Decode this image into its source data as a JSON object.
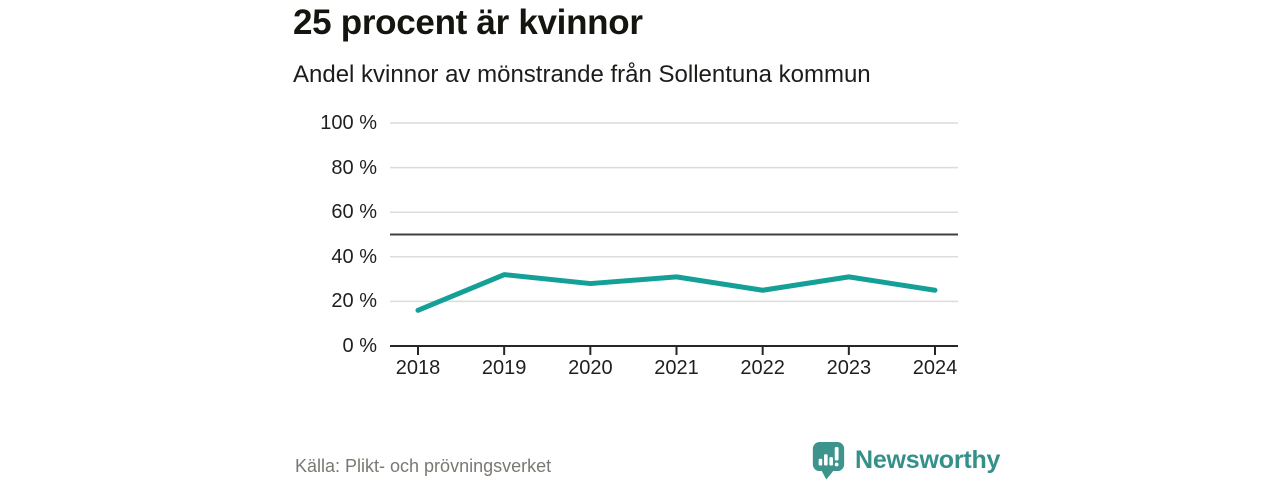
{
  "header": {
    "title": "25 procent är kvinnor",
    "subtitle": "Andel kvinnor av mönstrande från Sollentuna kommun"
  },
  "footer": {
    "source": "Källa: Plikt- och prövningsverket",
    "brand": "Newsworthy"
  },
  "colors": {
    "line": "#14a096",
    "grid": "#dcdcdc",
    "reference_line": "#404040",
    "axis": "#262626",
    "tick": "#262626",
    "label": "#1f1f1f",
    "brand_teal": "#35908a"
  },
  "chart_data": {
    "type": "line",
    "title": "25 procent är kvinnor",
    "subtitle": "Andel kvinnor av mönstrande från Sollentuna kommun",
    "x": [
      2018,
      2019,
      2020,
      2021,
      2022,
      2023,
      2024
    ],
    "x_labels": [
      "2018",
      "2019",
      "2020",
      "2021",
      "2022",
      "2023",
      "2024"
    ],
    "series": [
      {
        "name": "Andel kvinnor av mönstrande",
        "values": [
          16,
          32,
          28,
          31,
          25,
          31,
          25
        ]
      }
    ],
    "unit": "%",
    "ylim": [
      0,
      100
    ],
    "yticks": [
      0,
      20,
      40,
      60,
      80,
      100
    ],
    "ytick_labels": [
      "0 %",
      "20 %",
      "40 %",
      "60 %",
      "80 %",
      "100 %"
    ],
    "reference_line_y": 50,
    "grid": "horizontal",
    "legend": "none"
  }
}
